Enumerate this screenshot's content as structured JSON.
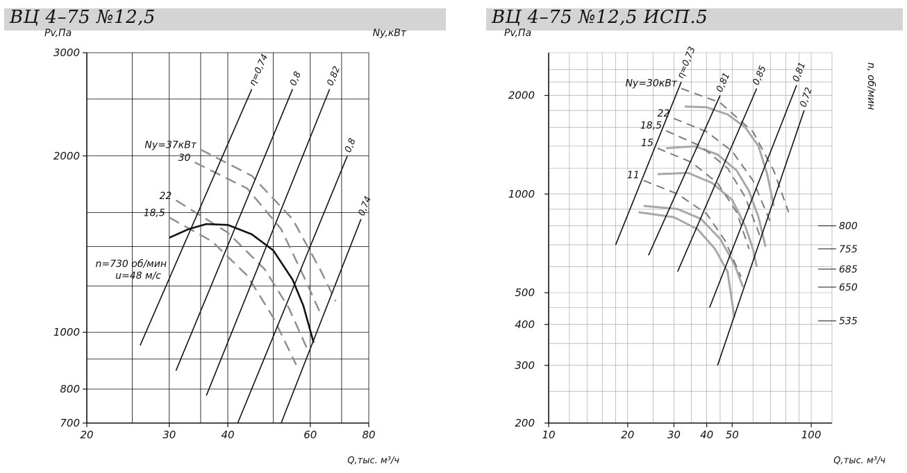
{
  "colors": {
    "background": "#ffffff",
    "title_bar": "#d4d4d4",
    "ink": "#111111",
    "dashed": "#8c8c8c",
    "gray_curve": "#a8a8a8",
    "grid": "#000000"
  },
  "charts": [
    {
      "title": "ВЦ 4–75 №12,5",
      "ylabel": "Pv,Па",
      "ylabel_right": "Ny,кВт",
      "xlabel": "Q,тыс. м³/ч"
    },
    {
      "title": "ВЦ 4–75 №12,5  ИСП.5",
      "ylabel": "Pv,Па",
      "ylabel_right": "n, об/мин",
      "xlabel": "Q,тыс. м³/ч"
    }
  ],
  "chart_data": [
    {
      "type": "line",
      "title": "ВЦ 4–75 №12,5",
      "xlabel": "Q,тыс. м³/ч",
      "ylabel": "Pv,Па",
      "ylabel_right": "Ny,кВт",
      "xscale": "log",
      "yscale": "log",
      "xlim": [
        20,
        80
      ],
      "ylim": [
        700,
        3000
      ],
      "xticks": [
        20,
        30,
        40,
        60,
        80
      ],
      "xtick_labels": [
        "20",
        "30",
        "40",
        "60",
        "80"
      ],
      "yticks": [
        700,
        800,
        1000,
        2000,
        3000
      ],
      "ytick_labels": [
        "700",
        "800",
        "1000",
        "2000",
        "3000"
      ],
      "grid": true,
      "annotation": [
        "n=730 об/мин",
        "u=48 м/с"
      ],
      "pressure_curve": {
        "rpm_label": "n=730 об/мин",
        "points": [
          [
            30,
            1450
          ],
          [
            33,
            1500
          ],
          [
            36,
            1530
          ],
          [
            40,
            1525
          ],
          [
            45,
            1470
          ],
          [
            50,
            1380
          ],
          [
            55,
            1230
          ],
          [
            58,
            1110
          ],
          [
            61,
            960
          ]
        ]
      },
      "efficiency_lines": [
        {
          "label": "η=0,74",
          "points": [
            [
              26,
              950
            ],
            [
              45,
              2600
            ]
          ]
        },
        {
          "label": "0,8",
          "points": [
            [
              31,
              860
            ],
            [
              55,
              2600
            ]
          ]
        },
        {
          "label": "0,82",
          "points": [
            [
              36,
              780
            ],
            [
              66,
              2600
            ]
          ]
        },
        {
          "label": "0,8",
          "points": [
            [
              42,
              700
            ],
            [
              72,
              2000
            ]
          ]
        },
        {
          "label": "0,74",
          "points": [
            [
              52,
              700
            ],
            [
              77,
              1560
            ]
          ]
        }
      ],
      "power_curves": [
        {
          "label": "Ny=37кВт",
          "points": [
            [
              35,
              2050
            ],
            [
              45,
              1850
            ],
            [
              55,
              1560
            ],
            [
              63,
              1280
            ],
            [
              68,
              1130
            ]
          ]
        },
        {
          "label": "30",
          "points": [
            [
              34,
              1950
            ],
            [
              44,
              1760
            ],
            [
              52,
              1500
            ],
            [
              58,
              1250
            ],
            [
              63,
              1080
            ]
          ]
        },
        {
          "label": "22",
          "points": [
            [
              31,
              1680
            ],
            [
              40,
              1480
            ],
            [
              48,
              1280
            ],
            [
              54,
              1100
            ],
            [
              59,
              940
            ]
          ]
        },
        {
          "label": "18,5",
          "points": [
            [
              30,
              1570
            ],
            [
              37,
              1430
            ],
            [
              44,
              1250
            ],
            [
              50,
              1060
            ],
            [
              56,
              880
            ]
          ]
        }
      ]
    },
    {
      "type": "line",
      "title": "ВЦ 4–75 №12,5  ИСП.5",
      "xlabel": "Q,тыс. м³/ч",
      "ylabel": "Pv,Па",
      "ylabel_right": "n, об/мин",
      "xscale": "log",
      "yscale": "log",
      "xlim": [
        10,
        120
      ],
      "ylim": [
        200,
        2700
      ],
      "xticks": [
        10,
        20,
        30,
        40,
        50,
        100
      ],
      "xtick_labels": [
        "10",
        "20",
        "30",
        "40",
        "50",
        "100"
      ],
      "yticks": [
        200,
        300,
        400,
        500,
        1000,
        2000
      ],
      "ytick_labels": [
        "200",
        "300",
        "400",
        "500",
        "1000",
        "2000"
      ],
      "grid": true,
      "rpm_labels": [
        {
          "label": "800",
          "pv": 800
        },
        {
          "label": "755",
          "pv": 680
        },
        {
          "label": "685",
          "pv": 590
        },
        {
          "label": "650",
          "pv": 520
        },
        {
          "label": "535",
          "pv": 410
        }
      ],
      "pressure_curves": [
        {
          "rpm": "800",
          "points": [
            [
              33,
              1850
            ],
            [
              40,
              1840
            ],
            [
              48,
              1750
            ],
            [
              56,
              1600
            ],
            [
              63,
              1400
            ],
            [
              68,
              1150
            ],
            [
              72,
              920
            ]
          ]
        },
        {
          "rpm": "755",
          "points": [
            [
              28,
              1380
            ],
            [
              36,
              1400
            ],
            [
              44,
              1320
            ],
            [
              52,
              1180
            ],
            [
              58,
              1020
            ],
            [
              63,
              850
            ],
            [
              67,
              690
            ]
          ]
        },
        {
          "rpm": "685",
          "points": [
            [
              26,
              1150
            ],
            [
              34,
              1160
            ],
            [
              42,
              1080
            ],
            [
              50,
              960
            ],
            [
              56,
              800
            ],
            [
              60,
              680
            ],
            [
              62,
              600
            ]
          ]
        },
        {
          "rpm": "650",
          "points": [
            [
              23,
              920
            ],
            [
              31,
              900
            ],
            [
              38,
              840
            ],
            [
              45,
              730
            ],
            [
              51,
              610
            ],
            [
              55,
              520
            ]
          ]
        },
        {
          "rpm": "535",
          "points": [
            [
              22,
              880
            ],
            [
              30,
              850
            ],
            [
              37,
              780
            ],
            [
              43,
              680
            ],
            [
              48,
              580
            ],
            [
              51,
              420
            ]
          ]
        }
      ],
      "efficiency_lines": [
        {
          "label": "η=0,73",
          "points": [
            [
              18,
              700
            ],
            [
              32,
              2200
            ]
          ]
        },
        {
          "label": "0,81",
          "points": [
            [
              24,
              650
            ],
            [
              45,
              2000
            ]
          ]
        },
        {
          "label": "0,85",
          "points": [
            [
              31,
              580
            ],
            [
              62,
              2100
            ]
          ]
        },
        {
          "label": "0,81",
          "points": [
            [
              41,
              450
            ],
            [
              88,
              2150
            ]
          ]
        },
        {
          "label": "0,72",
          "points": [
            [
              44,
              300
            ],
            [
              94,
              1800
            ]
          ]
        }
      ],
      "power_curves": [
        {
          "label": "Ny=30кВт",
          "points": [
            [
              32,
              2100
            ],
            [
              45,
              1900
            ],
            [
              60,
              1550
            ],
            [
              72,
              1180
            ],
            [
              82,
              880
            ]
          ]
        },
        {
          "label": "22",
          "points": [
            [
              30,
              1700
            ],
            [
              40,
              1550
            ],
            [
              50,
              1350
            ],
            [
              60,
              1100
            ],
            [
              70,
              820
            ]
          ]
        },
        {
          "label": "18,5",
          "points": [
            [
              28,
              1560
            ],
            [
              38,
              1400
            ],
            [
              48,
              1200
            ],
            [
              56,
              980
            ],
            [
              64,
              740
            ]
          ]
        },
        {
          "label": "15",
          "points": [
            [
              26,
              1380
            ],
            [
              35,
              1250
            ],
            [
              44,
              1080
            ],
            [
              52,
              880
            ],
            [
              58,
              680
            ]
          ]
        },
        {
          "label": "11",
          "points": [
            [
              23,
              1100
            ],
            [
              31,
              1000
            ],
            [
              40,
              870
            ],
            [
              47,
              720
            ],
            [
              54,
              560
            ]
          ]
        }
      ]
    }
  ]
}
